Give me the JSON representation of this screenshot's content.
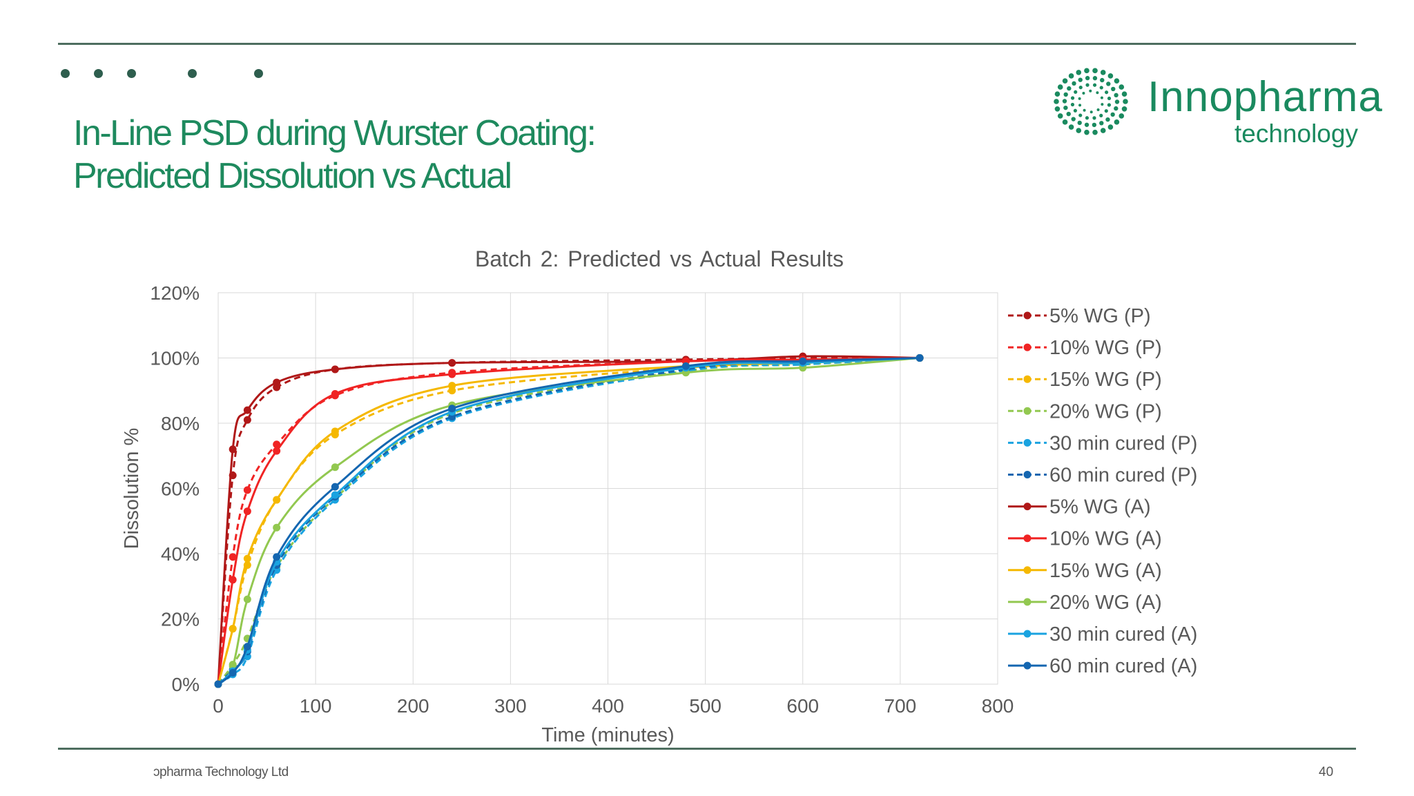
{
  "slide": {
    "title_line1": "In-Line PSD during Wurster Coating:",
    "title_line2": "Predicted Dissolution vs Actual",
    "logo_name": "Innopharma",
    "logo_sub": "technology",
    "footer": "ɔpharma Technology Ltd",
    "page_number": "40",
    "accent_color": "#1e8a5e",
    "rule_color": "#4d6e5f"
  },
  "chart_data": {
    "type": "line",
    "title": "Batch 2: Predicted vs Actual Results",
    "xlabel": "Time (minutes)",
    "ylabel": "Dissolution %",
    "xlim": [
      0,
      800
    ],
    "ylim": [
      0,
      120
    ],
    "xticks": [
      0,
      100,
      200,
      300,
      400,
      500,
      600,
      700,
      800
    ],
    "yticks": [
      0,
      20,
      40,
      60,
      80,
      100,
      120
    ],
    "ytick_format": "percent",
    "grid": true,
    "legend_position": "right",
    "series": [
      {
        "name": "5% WG (P)",
        "style": "dashed",
        "color": "#b01818",
        "x": [
          0,
          15,
          30,
          60,
          120,
          240,
          480,
          600,
          720
        ],
        "y": [
          0,
          64,
          81,
          91,
          96.5,
          98.5,
          99.5,
          100,
          100
        ]
      },
      {
        "name": "10% WG (P)",
        "style": "dashed",
        "color": "#f02424",
        "x": [
          0,
          15,
          30,
          60,
          120,
          240,
          480,
          600,
          720
        ],
        "y": [
          0,
          39,
          59.5,
          73.5,
          88.5,
          95.5,
          99,
          99.5,
          100
        ]
      },
      {
        "name": "15% WG (P)",
        "style": "dashed",
        "color": "#f5b800",
        "x": [
          0,
          15,
          30,
          60,
          120,
          240,
          480,
          600,
          720
        ],
        "y": [
          0,
          17,
          36.5,
          56.5,
          76.5,
          90,
          97,
          98.5,
          100
        ]
      },
      {
        "name": "20% WG (P)",
        "style": "dashed",
        "color": "#92c850",
        "x": [
          0,
          15,
          30,
          60,
          120,
          240,
          480,
          600,
          720
        ],
        "y": [
          0,
          6,
          14,
          36,
          57,
          83,
          96,
          98,
          100
        ]
      },
      {
        "name": "30 min cured (P)",
        "style": "dashed",
        "color": "#1aa3e0",
        "x": [
          0,
          15,
          30,
          60,
          120,
          240,
          480,
          600,
          720
        ],
        "y": [
          0,
          3,
          8.5,
          35,
          56.5,
          81.5,
          96,
          98,
          100
        ]
      },
      {
        "name": "60 min cured (P)",
        "style": "dashed",
        "color": "#1466b0",
        "x": [
          0,
          15,
          30,
          60,
          120,
          240,
          480,
          600,
          720
        ],
        "y": [
          0,
          4.5,
          10,
          36.5,
          57.5,
          82,
          96.5,
          98.5,
          100
        ]
      },
      {
        "name": "5% WG (A)",
        "style": "solid",
        "color": "#b01818",
        "x": [
          0,
          15,
          30,
          60,
          120,
          240,
          480,
          600,
          720
        ],
        "y": [
          0,
          72,
          84,
          92.5,
          96.5,
          98.5,
          99,
          100.5,
          100
        ]
      },
      {
        "name": "10% WG (A)",
        "style": "solid",
        "color": "#f02424",
        "x": [
          0,
          15,
          30,
          60,
          120,
          240,
          480,
          600,
          720
        ],
        "y": [
          0,
          32,
          53,
          71.5,
          89,
          95,
          99,
          99.5,
          100
        ]
      },
      {
        "name": "15% WG (A)",
        "style": "solid",
        "color": "#f5b800",
        "x": [
          0,
          15,
          30,
          60,
          120,
          240,
          480,
          600,
          720
        ],
        "y": [
          0,
          17,
          38.5,
          56.5,
          77.5,
          91.5,
          97.5,
          98.5,
          100
        ]
      },
      {
        "name": "20% WG (A)",
        "style": "solid",
        "color": "#92c850",
        "x": [
          0,
          15,
          30,
          60,
          120,
          240,
          480,
          600,
          720
        ],
        "y": [
          0,
          5.5,
          26,
          48,
          66.5,
          85.5,
          95.5,
          97,
          100
        ]
      },
      {
        "name": "30 min cured (A)",
        "style": "solid",
        "color": "#1aa3e0",
        "x": [
          0,
          15,
          30,
          60,
          120,
          240,
          480,
          600,
          720
        ],
        "y": [
          0,
          4,
          10.5,
          37.5,
          58,
          83.5,
          97,
          98.5,
          100
        ]
      },
      {
        "name": "60 min cured (A)",
        "style": "solid",
        "color": "#1466b0",
        "x": [
          0,
          15,
          30,
          60,
          120,
          240,
          480,
          600,
          720
        ],
        "y": [
          0,
          3.5,
          11.5,
          39,
          60.5,
          84.5,
          97.5,
          99,
          100
        ]
      }
    ]
  }
}
